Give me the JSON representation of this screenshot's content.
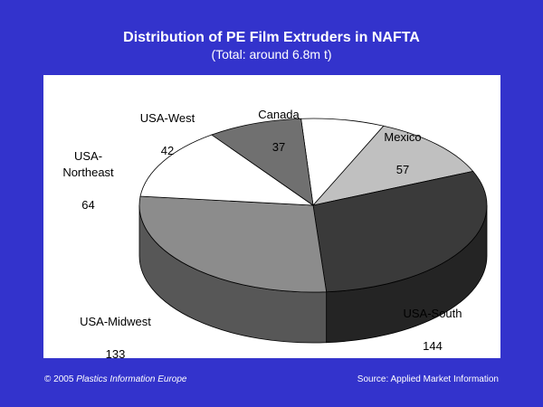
{
  "chart_data": {
    "type": "pie",
    "title": "Distribution of PE Film Extruders in NAFTA",
    "subtitle": "(Total: around 6.8m t)",
    "style": "3d",
    "categories": [
      "Canada",
      "Mexico",
      "USA-South",
      "USA-Midwest",
      "USA-Northeast",
      "USA-West"
    ],
    "values": [
      37,
      57,
      144,
      133,
      64,
      42
    ],
    "colors": [
      "#ffffff",
      "#c0c0c0",
      "#3a3a3a",
      "#8c8c8c",
      "#ffffff",
      "#707070"
    ]
  },
  "footer": {
    "copyright": "© 2005",
    "publisher": "Plastics Information Europe",
    "source": "Source: Applied Market Information"
  }
}
